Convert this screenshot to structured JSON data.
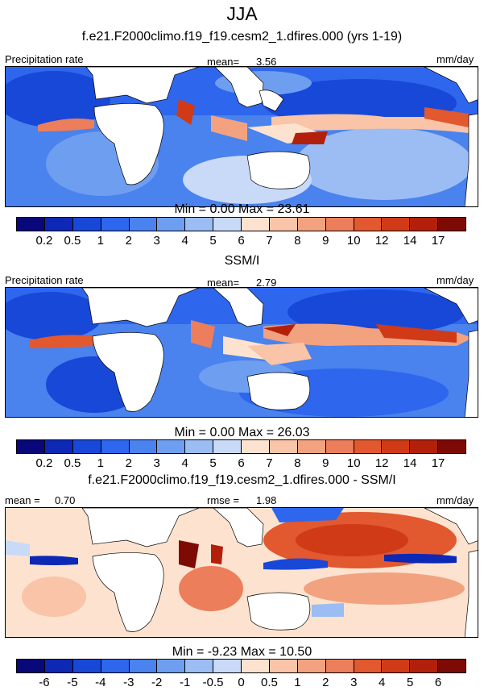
{
  "title": "JJA",
  "panels": [
    {
      "subtitle": "f.e21.F2000climo.f19_f19.cesm2_1.dfires.000 (yrs 1-19)",
      "left_label": "Precipitation rate",
      "center_label": "mean=",
      "center_value": "3.56",
      "right_label": "mm/day",
      "minmax": "Min =   0.00 Max =  23.61"
    },
    {
      "subtitle": "SSM/I",
      "left_label": "Precipitation rate",
      "center_label": "mean=",
      "center_value": "2.79",
      "right_label": "mm/day",
      "minmax": "Min =   0.00 Max =  26.03"
    },
    {
      "subtitle": "f.e21.F2000climo.f19_f19.cesm2_1.dfires.000 - SSM/I",
      "left_label": "mean =",
      "left_value": "0.70",
      "center_label": "rmse =",
      "center_value": "1.98",
      "right_label": "mm/day",
      "minmax": "Min =  -9.23 Max =  10.50"
    }
  ],
  "chart_data": [
    {
      "type": "heatmap",
      "title": "f.e21.F2000climo.f19_f19.cesm2_1.dfires.000 (yrs 1-19)",
      "variable": "Precipitation rate",
      "units": "mm/day",
      "mean": 3.56,
      "min": 0.0,
      "max": 23.61,
      "levels": [
        "0.2",
        "0.5",
        "1",
        "2",
        "3",
        "4",
        "5",
        "6",
        "7",
        "8",
        "9",
        "10",
        "12",
        "14",
        "17"
      ],
      "colors": [
        "#08087a",
        "#0c28b4",
        "#1848d8",
        "#2e66ee",
        "#4a82ee",
        "#6e9ef0",
        "#9cbcf4",
        "#c8daf8",
        "#fde3cf",
        "#f9c4a7",
        "#f3a27f",
        "#ec7e5b",
        "#e2582f",
        "#d03a17",
        "#b2200c",
        "#7e0a05"
      ]
    },
    {
      "type": "heatmap",
      "title": "SSM/I",
      "variable": "Precipitation rate",
      "units": "mm/day",
      "mean": 2.79,
      "min": 0.0,
      "max": 26.03,
      "levels": [
        "0.2",
        "0.5",
        "1",
        "2",
        "3",
        "4",
        "5",
        "6",
        "7",
        "8",
        "9",
        "10",
        "12",
        "14",
        "17"
      ],
      "colors": [
        "#08087a",
        "#0c28b4",
        "#1848d8",
        "#2e66ee",
        "#4a82ee",
        "#6e9ef0",
        "#9cbcf4",
        "#c8daf8",
        "#fde3cf",
        "#f9c4a7",
        "#f3a27f",
        "#ec7e5b",
        "#e2582f",
        "#d03a17",
        "#b2200c",
        "#7e0a05"
      ]
    },
    {
      "type": "heatmap",
      "title": "f.e21.F2000climo.f19_f19.cesm2_1.dfires.000 - SSM/I",
      "units": "mm/day",
      "mean": 0.7,
      "rmse": 1.98,
      "min": -9.23,
      "max": 10.5,
      "levels": [
        "-6",
        "-5",
        "-4",
        "-3",
        "-2",
        "-1",
        "-0.5",
        "0",
        "0.5",
        "1",
        "2",
        "3",
        "4",
        "5",
        "6"
      ],
      "colors": [
        "#08087a",
        "#0c28b4",
        "#1848d8",
        "#2e66ee",
        "#4a82ee",
        "#6e9ef0",
        "#9cbcf4",
        "#c8daf8",
        "#fde3cf",
        "#f9c4a7",
        "#f3a27f",
        "#ec7e5b",
        "#e2582f",
        "#d03a17",
        "#b2200c",
        "#7e0a05"
      ]
    }
  ]
}
